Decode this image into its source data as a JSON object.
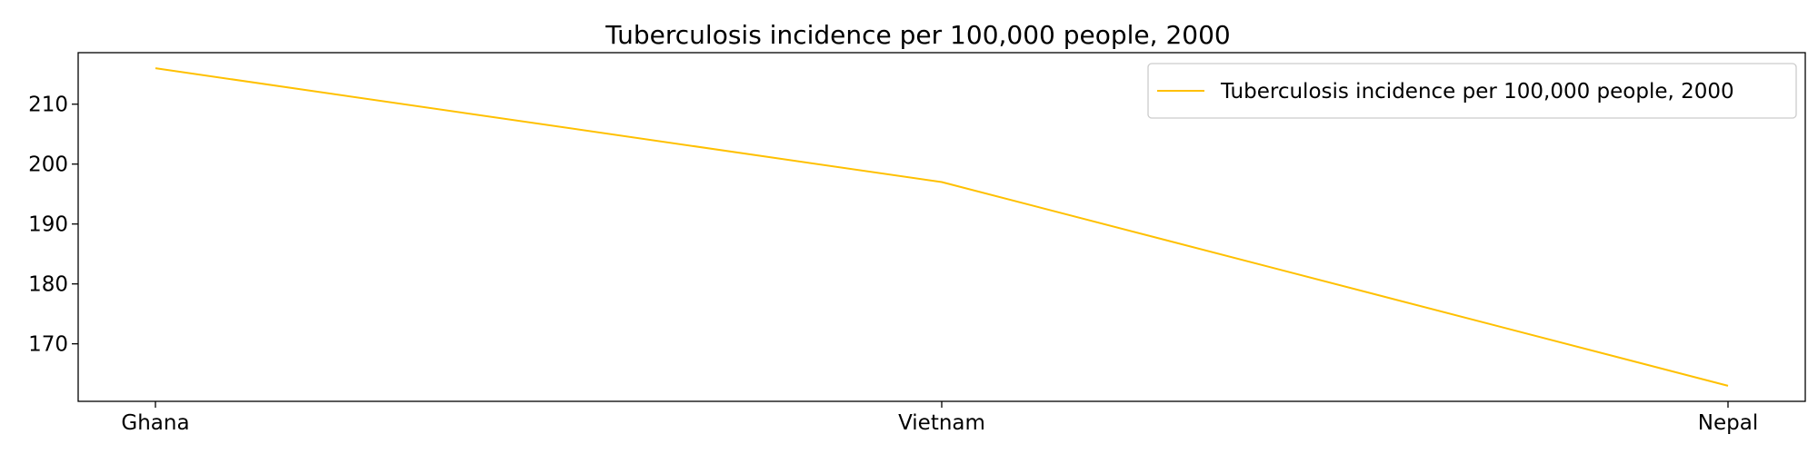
{
  "chart_data": {
    "type": "line",
    "title": "Tuberculosis incidence per 100,000 people, 2000",
    "xlabel": "",
    "ylabel": "",
    "categories": [
      "Ghana",
      "Vietnam",
      "Nepal"
    ],
    "series": [
      {
        "name": "Tuberculosis incidence per 100,000 people, 2000",
        "values": [
          216,
          197,
          163
        ],
        "color": "#FFC000"
      }
    ],
    "ylim": [
      160.4,
      218.6
    ],
    "yticks": [
      170,
      180,
      190,
      200,
      210
    ],
    "grid": false,
    "legend_position": "top-right"
  }
}
